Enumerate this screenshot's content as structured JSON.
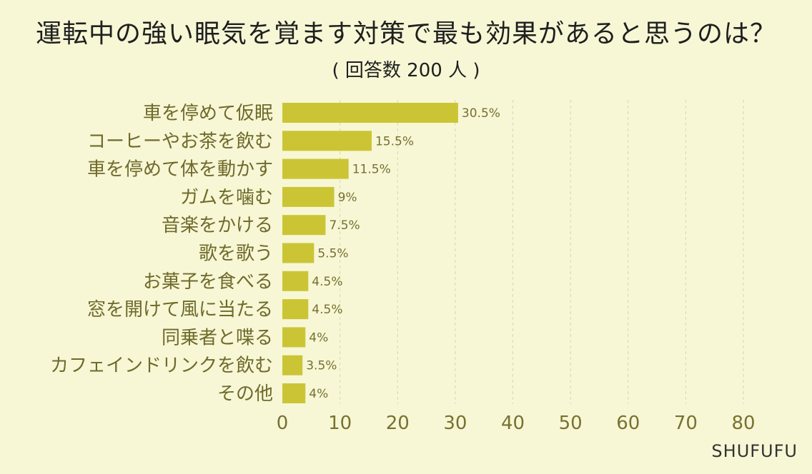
{
  "title": "運転中の強い眠気を覚ます対策で最も効果があると思うのは？",
  "subtitle": "( 回答数 200 人 )",
  "watermark": "SHUFUFU",
  "colors": {
    "background": "#f7f7d6",
    "bar": "#cbc535",
    "category_label": "#6f6a2a",
    "value_label": "#75702f",
    "tick_label": "#77722f",
    "grid": "#d9d6a8"
  },
  "chart_data": {
    "type": "bar",
    "orientation": "horizontal",
    "categories": [
      "車を停めて仮眠",
      "コーヒーやお茶を飲む",
      "車を停めて体を動かす",
      "ガムを噛む",
      "音楽をかける",
      "歌を歌う",
      "お菓子を食べる",
      "窓を開けて風に当たる",
      "同乗者と喋る",
      "カフェインドリンクを飲む",
      "その他"
    ],
    "values": [
      30.5,
      15.5,
      11.5,
      9,
      7.5,
      5.5,
      4.5,
      4.5,
      4,
      3.5,
      4
    ],
    "value_labels": [
      "30.5%",
      "15.5%",
      "11.5%",
      "9%",
      "7.5%",
      "5.5%",
      "4.5%",
      "4.5%",
      "4%",
      "3.5%",
      "4%"
    ],
    "xlim": [
      0,
      80
    ],
    "xticks": [
      0,
      10,
      20,
      30,
      40,
      50,
      60,
      70,
      80
    ],
    "grid": true,
    "grid_style": "dashed vertical"
  }
}
